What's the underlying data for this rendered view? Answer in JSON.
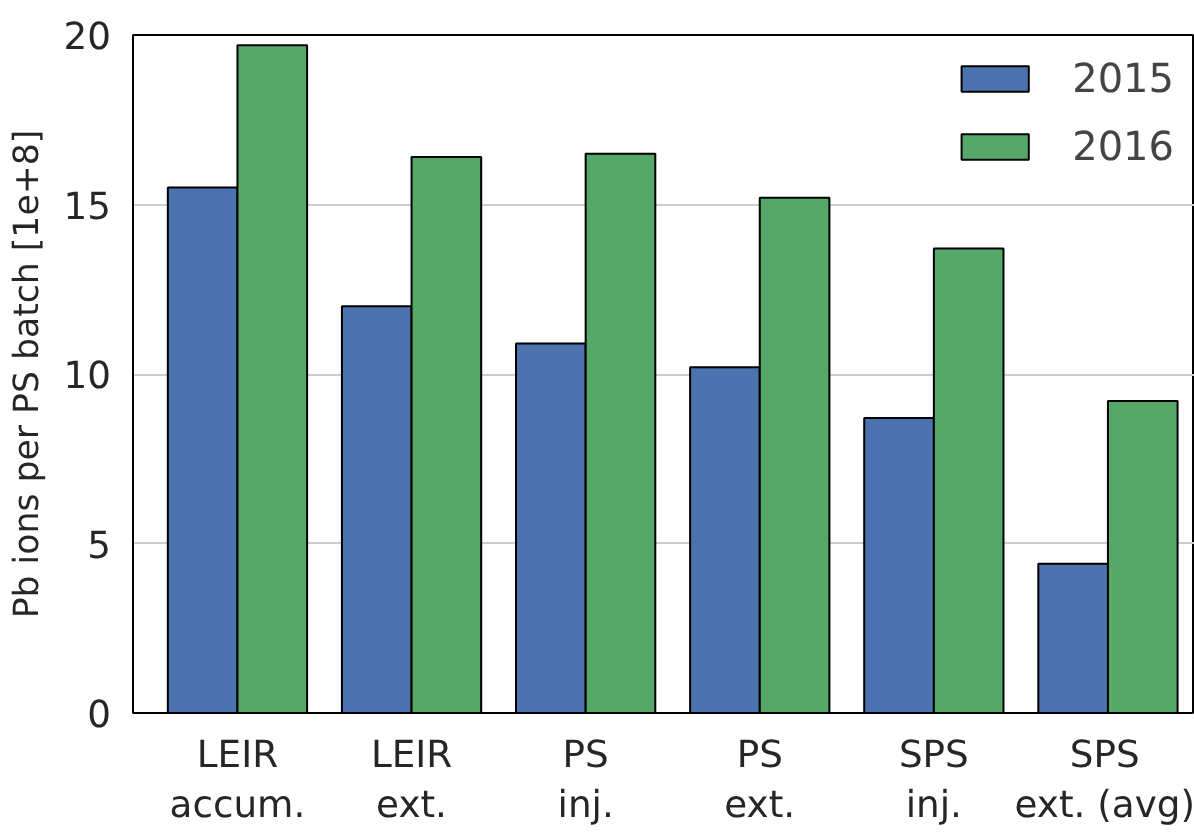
{
  "chart_data": {
    "type": "bar",
    "ylabel": "Pb ions per PS batch [1e+8]",
    "categories": [
      "LEIR\naccum.",
      "LEIR\next.",
      "PS\ninj.",
      "PS\next.",
      "SPS\ninj.",
      "SPS\next. (avg)"
    ],
    "series": [
      {
        "name": "2015",
        "color": "#4c72b0",
        "values": [
          15.5,
          12.0,
          10.9,
          10.2,
          8.7,
          4.4
        ]
      },
      {
        "name": "2016",
        "color": "#55a868",
        "values": [
          19.7,
          16.4,
          16.5,
          15.2,
          13.7,
          9.2
        ]
      }
    ],
    "ylim": [
      0,
      20
    ],
    "yticks": [
      0,
      5,
      10,
      15,
      20
    ],
    "grid": "y",
    "legend": "top right"
  }
}
